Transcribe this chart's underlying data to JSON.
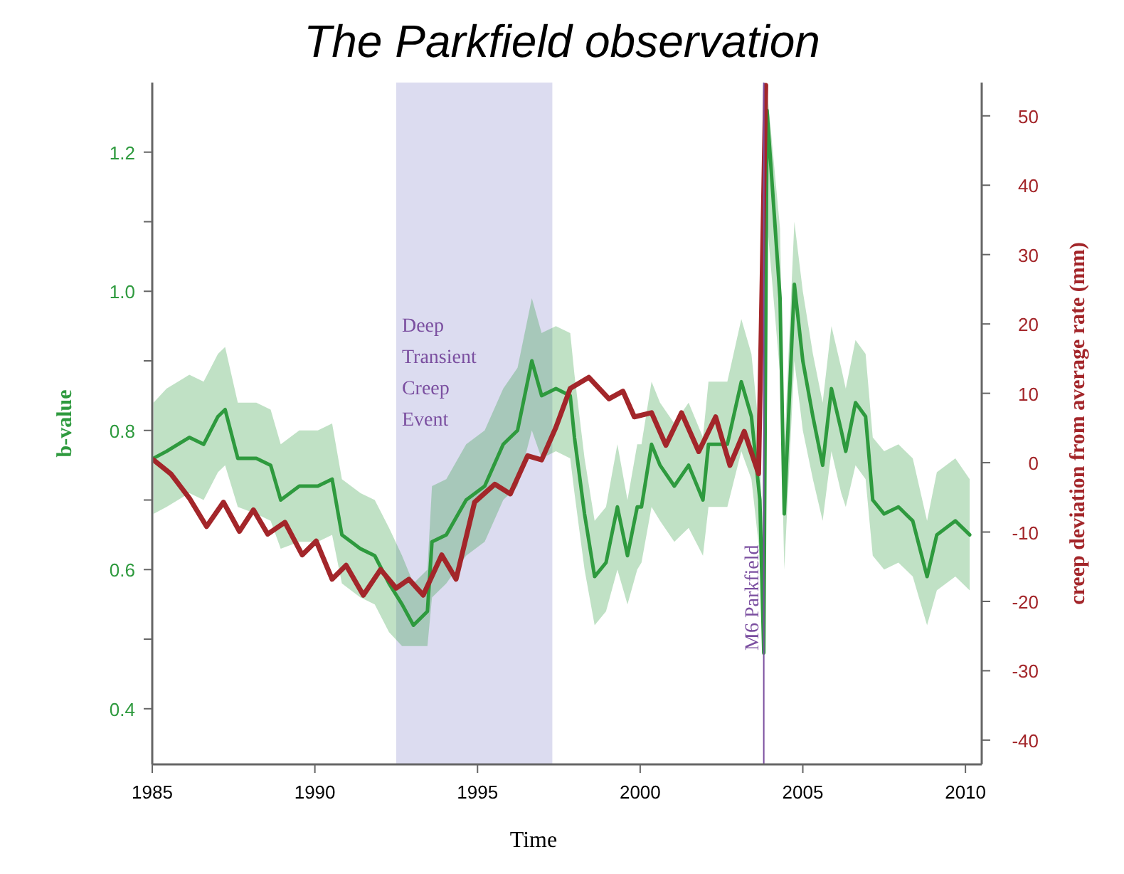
{
  "chart_data": {
    "type": "line",
    "title": "The Parkfield observation",
    "xlabel": "Time",
    "ylabel": "b-value",
    "y2label": "creep deviation from average rate (mm)",
    "xlim": [
      1985,
      2010.5
    ],
    "xticks": [
      1985,
      1990,
      1995,
      2000,
      2005,
      2010
    ],
    "ylim": [
      0.32,
      1.3
    ],
    "yticks": [
      {
        "value": 0.4,
        "label": "0.4"
      },
      {
        "value": 0.5,
        "label": null
      },
      {
        "value": 0.6,
        "label": "0.6"
      },
      {
        "value": 0.7,
        "label": null
      },
      {
        "value": 0.8,
        "label": "0.8"
      },
      {
        "value": 0.9,
        "label": null
      },
      {
        "value": 1,
        "label": "1.0"
      },
      {
        "value": 1.1,
        "label": null
      },
      {
        "value": 1.2,
        "label": "1.2"
      }
    ],
    "y2lim": [
      -43.5,
      54.8
    ],
    "y2ticks": [
      -40,
      -30,
      -20,
      -10,
      0,
      10,
      20,
      30,
      40,
      50
    ],
    "grid": false,
    "series": [
      {
        "name": null,
        "color": "#2e9a3e",
        "x": [
          1985.04,
          1985.44,
          1986.14,
          1986.58,
          1987.02,
          1987.24,
          1987.63,
          1988.2,
          1988.64,
          1988.95,
          1989.52,
          1990.09,
          1990.53,
          1990.83,
          1991.4,
          1991.84,
          1992.28,
          1992.68,
          1993.03,
          1993.46,
          1993.6,
          1994.04,
          1994.65,
          1995.22,
          1995.79,
          1996.23,
          1996.67,
          1996.97,
          1997.41,
          1997.85,
          1997.98,
          1998.29,
          1998.6,
          1998.95,
          1999.3,
          1999.61,
          1999.91,
          2000.04,
          2000.35,
          2000.61,
          2001.05,
          2001.49,
          2001.93,
          2002.1,
          2002.68,
          2003.11,
          2003.42,
          2003.68,
          2003.8,
          2003.9,
          2004.3,
          2004.43,
          2004.74,
          2005.0,
          2005.31,
          2005.61,
          2005.88,
          2006.18,
          2006.32,
          2006.62,
          2006.93,
          2007.15,
          2007.5,
          2007.94,
          2008.38,
          2008.82,
          2009.12,
          2009.69,
          2010.13
        ],
        "values": [
          0.76,
          0.77,
          0.79,
          0.78,
          0.82,
          0.83,
          0.76,
          0.76,
          0.75,
          0.7,
          0.72,
          0.72,
          0.73,
          0.65,
          0.63,
          0.62,
          0.58,
          0.55,
          0.52,
          0.54,
          0.64,
          0.65,
          0.7,
          0.72,
          0.78,
          0.8,
          0.9,
          0.85,
          0.86,
          0.85,
          0.79,
          0.68,
          0.59,
          0.61,
          0.69,
          0.62,
          0.69,
          0.69,
          0.78,
          0.75,
          0.72,
          0.75,
          0.7,
          0.78,
          0.78,
          0.87,
          0.82,
          0.7,
          0.48,
          1.26,
          0.99,
          0.68,
          1.01,
          0.9,
          0.82,
          0.75,
          0.86,
          0.8,
          0.77,
          0.84,
          0.82,
          0.7,
          0.68,
          0.69,
          0.67,
          0.59,
          0.65,
          0.67,
          0.65
        ],
        "lower": [
          0.68,
          0.69,
          0.71,
          0.7,
          0.74,
          0.75,
          0.69,
          0.68,
          0.67,
          0.63,
          0.64,
          0.64,
          0.65,
          0.58,
          0.56,
          0.55,
          0.51,
          0.49,
          0.49,
          0.49,
          0.56,
          0.58,
          0.62,
          0.64,
          0.7,
          0.72,
          0.8,
          0.76,
          0.77,
          0.76,
          0.71,
          0.6,
          0.52,
          0.54,
          0.6,
          0.55,
          0.6,
          0.61,
          0.69,
          0.67,
          0.64,
          0.66,
          0.62,
          0.69,
          0.69,
          0.77,
          0.73,
          0.62,
          0.45,
          1.1,
          0.88,
          0.6,
          0.9,
          0.8,
          0.73,
          0.67,
          0.77,
          0.71,
          0.69,
          0.75,
          0.73,
          0.62,
          0.6,
          0.61,
          0.59,
          0.52,
          0.57,
          0.59,
          0.57
        ],
        "upper": [
          0.84,
          0.86,
          0.88,
          0.87,
          0.91,
          0.92,
          0.84,
          0.84,
          0.83,
          0.78,
          0.8,
          0.8,
          0.81,
          0.73,
          0.71,
          0.7,
          0.66,
          0.62,
          0.58,
          0.6,
          0.72,
          0.73,
          0.78,
          0.8,
          0.86,
          0.89,
          0.99,
          0.94,
          0.95,
          0.94,
          0.88,
          0.76,
          0.67,
          0.69,
          0.78,
          0.7,
          0.78,
          0.78,
          0.87,
          0.84,
          0.81,
          0.84,
          0.79,
          0.87,
          0.87,
          0.96,
          0.91,
          0.79,
          0.52,
          1.29,
          1.09,
          0.77,
          1.1,
          1.0,
          0.91,
          0.84,
          0.95,
          0.89,
          0.86,
          0.93,
          0.91,
          0.79,
          0.77,
          0.78,
          0.76,
          0.67,
          0.74,
          0.76,
          0.73
        ]
      },
      {
        "name": null,
        "axis": "y2",
        "color": "#a3262a",
        "x": [
          1985.04,
          1985.57,
          1986.14,
          1986.67,
          1987.19,
          1987.68,
          1988.11,
          1988.55,
          1989.08,
          1989.61,
          1990.04,
          1990.53,
          1990.96,
          1991.49,
          1992.02,
          1992.5,
          1992.89,
          1993.33,
          1993.9,
          1994.34,
          1994.91,
          1995.53,
          1996.01,
          1996.54,
          1996.97,
          1997.41,
          1997.85,
          1998.42,
          1999.04,
          1999.47,
          1999.82,
          2000.35,
          2000.79,
          2001.27,
          2001.8,
          2002.32,
          2002.76,
          2003.2,
          2003.64,
          2003.86
        ],
        "values": [
          0.4,
          -1.6,
          -5.1,
          -9.2,
          -5.7,
          -9.9,
          -6.8,
          -10.3,
          -8.6,
          -13.3,
          -11.3,
          -16.8,
          -14.8,
          -19.1,
          -15.4,
          -18.1,
          -16.8,
          -19.1,
          -13.3,
          -16.8,
          -5.7,
          -3.1,
          -4.5,
          1,
          0.4,
          5.1,
          10.7,
          12.3,
          9.2,
          10.3,
          6.6,
          7.2,
          2.5,
          7.2,
          1.6,
          6.6,
          -0.4,
          4.5,
          -1.6,
          54.4
        ]
      }
    ],
    "ref_lines": [
      {
        "axis": "x",
        "value": 2003.8,
        "label": "M6 Parkfield",
        "color": "#7b4fa0"
      }
    ],
    "bands": [
      {
        "axis": "x",
        "from": 1992.5,
        "to": 1997.3,
        "label": "Deep Transient Creep Event",
        "color": "#dcdcf0"
      }
    ]
  }
}
